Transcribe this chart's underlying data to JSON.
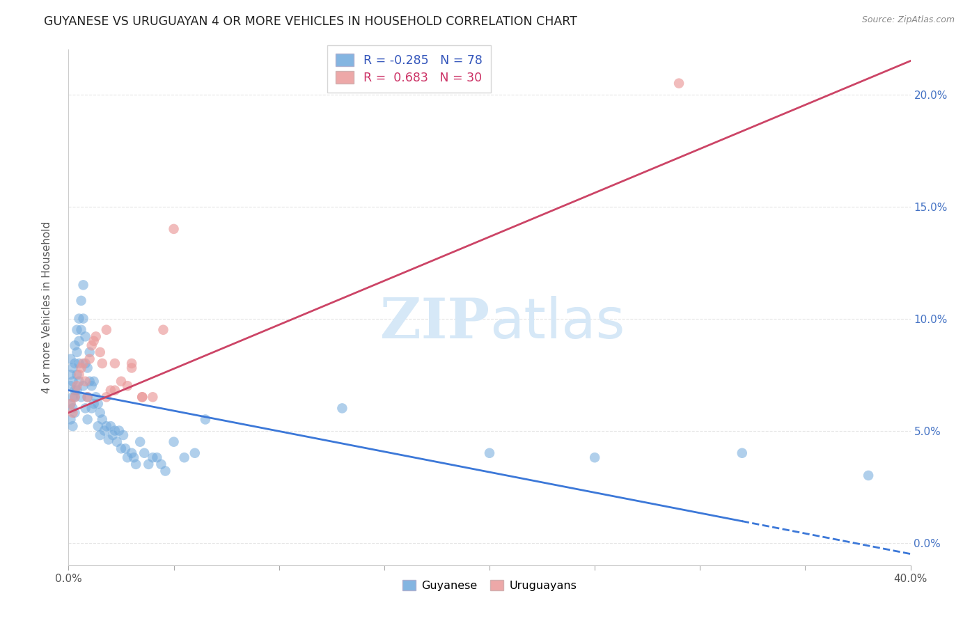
{
  "title": "GUYANESE VS URUGUAYAN 4 OR MORE VEHICLES IN HOUSEHOLD CORRELATION CHART",
  "source": "Source: ZipAtlas.com",
  "ylabel": "4 or more Vehicles in Household",
  "xlim": [
    0.0,
    0.4
  ],
  "ylim": [
    -0.01,
    0.22
  ],
  "xticks": [
    0.0,
    0.05,
    0.1,
    0.15,
    0.2,
    0.25,
    0.3,
    0.35,
    0.4
  ],
  "xtick_labels_show": [
    "0.0%",
    "",
    "",
    "",
    "",
    "",
    "",
    "",
    "40.0%"
  ],
  "yticks": [
    0.0,
    0.05,
    0.1,
    0.15,
    0.2
  ],
  "ytick_labels_right": [
    "0.0%",
    "5.0%",
    "10.0%",
    "15.0%",
    "20.0%"
  ],
  "blue_R": -0.285,
  "blue_N": 78,
  "pink_R": 0.683,
  "pink_N": 30,
  "blue_color": "#6fa8dc",
  "pink_color": "#ea9999",
  "blue_line_color": "#3c78d8",
  "pink_line_color": "#cc4466",
  "legend_label_blue": "Guyanese",
  "legend_label_pink": "Uruguayans",
  "blue_line_x0": 0.0,
  "blue_line_y0": 0.068,
  "blue_line_x1": 0.4,
  "blue_line_y1": -0.005,
  "pink_line_x0": 0.0,
  "pink_line_y0": 0.058,
  "pink_line_x1": 0.4,
  "pink_line_y1": 0.215,
  "blue_x": [
    0.001,
    0.001,
    0.001,
    0.002,
    0.002,
    0.002,
    0.003,
    0.003,
    0.003,
    0.004,
    0.004,
    0.004,
    0.005,
    0.005,
    0.005,
    0.006,
    0.006,
    0.007,
    0.007,
    0.008,
    0.008,
    0.009,
    0.009,
    0.01,
    0.01,
    0.011,
    0.011,
    0.012,
    0.012,
    0.013,
    0.014,
    0.014,
    0.015,
    0.015,
    0.016,
    0.017,
    0.018,
    0.019,
    0.02,
    0.021,
    0.022,
    0.023,
    0.024,
    0.025,
    0.026,
    0.027,
    0.028,
    0.03,
    0.031,
    0.032,
    0.034,
    0.036,
    0.038,
    0.04,
    0.042,
    0.044,
    0.046,
    0.05,
    0.055,
    0.06,
    0.065,
    0.001,
    0.001,
    0.002,
    0.002,
    0.003,
    0.003,
    0.004,
    0.005,
    0.006,
    0.007,
    0.008,
    0.009,
    0.13,
    0.2,
    0.25,
    0.32,
    0.38
  ],
  "blue_y": [
    0.075,
    0.082,
    0.07,
    0.078,
    0.072,
    0.065,
    0.088,
    0.08,
    0.068,
    0.095,
    0.085,
    0.075,
    0.1,
    0.09,
    0.08,
    0.108,
    0.095,
    0.115,
    0.1,
    0.092,
    0.08,
    0.078,
    0.065,
    0.085,
    0.072,
    0.07,
    0.06,
    0.072,
    0.062,
    0.065,
    0.062,
    0.052,
    0.058,
    0.048,
    0.055,
    0.05,
    0.052,
    0.046,
    0.052,
    0.048,
    0.05,
    0.045,
    0.05,
    0.042,
    0.048,
    0.042,
    0.038,
    0.04,
    0.038,
    0.035,
    0.045,
    0.04,
    0.035,
    0.038,
    0.038,
    0.035,
    0.032,
    0.045,
    0.038,
    0.04,
    0.055,
    0.062,
    0.055,
    0.06,
    0.052,
    0.065,
    0.058,
    0.068,
    0.072,
    0.065,
    0.07,
    0.06,
    0.055,
    0.06,
    0.04,
    0.038,
    0.04,
    0.03
  ],
  "pink_x": [
    0.001,
    0.002,
    0.003,
    0.004,
    0.005,
    0.006,
    0.007,
    0.008,
    0.009,
    0.01,
    0.011,
    0.012,
    0.013,
    0.015,
    0.016,
    0.018,
    0.02,
    0.022,
    0.025,
    0.028,
    0.03,
    0.035,
    0.04,
    0.045,
    0.05,
    0.018,
    0.022,
    0.03,
    0.035,
    0.29
  ],
  "pink_y": [
    0.062,
    0.058,
    0.065,
    0.07,
    0.075,
    0.078,
    0.08,
    0.072,
    0.065,
    0.082,
    0.088,
    0.09,
    0.092,
    0.085,
    0.08,
    0.065,
    0.068,
    0.08,
    0.072,
    0.07,
    0.08,
    0.065,
    0.065,
    0.095,
    0.14,
    0.095,
    0.068,
    0.078,
    0.065,
    0.205
  ]
}
